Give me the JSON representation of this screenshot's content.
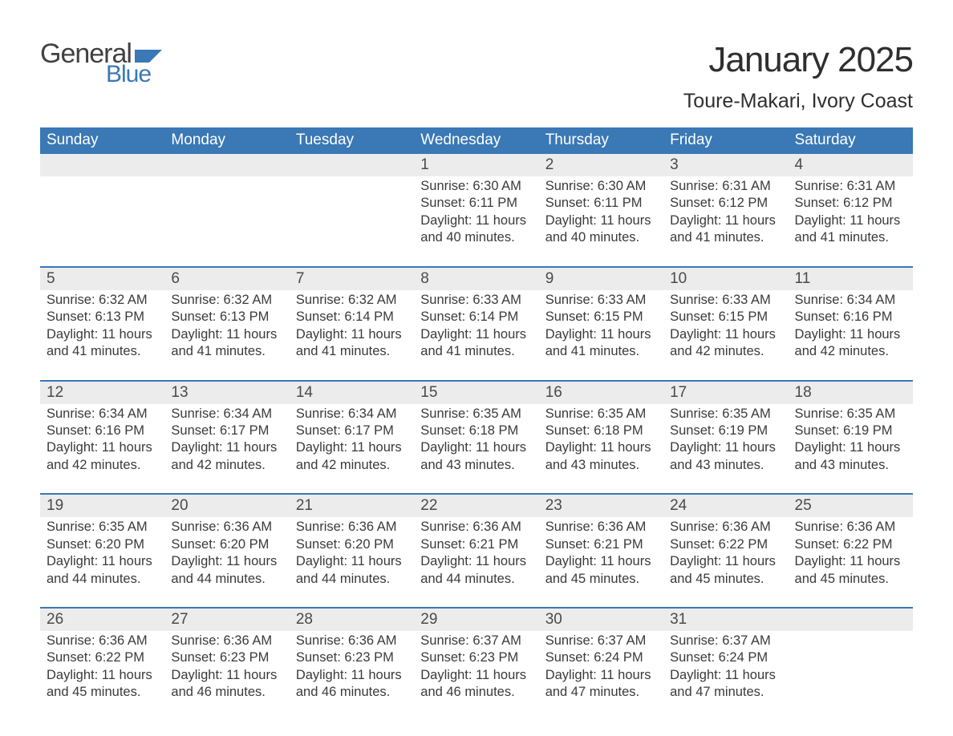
{
  "logo": {
    "general_text": "General",
    "blue_text": "Blue",
    "general_color": "#414141",
    "blue_color": "#3a78b6",
    "flag_color": "#3a78b6"
  },
  "header": {
    "month_title": "January 2025",
    "location": "Toure-Makari, Ivory Coast"
  },
  "style": {
    "header_row_bg": "#3a78b6",
    "header_row_text": "#ffffff",
    "daynum_bar_bg": "#ececec",
    "week_sep_color": "#3a78b6",
    "body_text_color": "#3a3a3a",
    "page_bg": "#ffffff"
  },
  "days_of_week": [
    "Sunday",
    "Monday",
    "Tuesday",
    "Wednesday",
    "Thursday",
    "Friday",
    "Saturday"
  ],
  "labels": {
    "sunrise": "Sunrise:",
    "sunset": "Sunset:",
    "daylight": "Daylight:"
  },
  "weeks": [
    [
      null,
      null,
      null,
      {
        "n": "1",
        "sr": "6:30 AM",
        "ss": "6:11 PM",
        "dl": "11 hours and 40 minutes."
      },
      {
        "n": "2",
        "sr": "6:30 AM",
        "ss": "6:11 PM",
        "dl": "11 hours and 40 minutes."
      },
      {
        "n": "3",
        "sr": "6:31 AM",
        "ss": "6:12 PM",
        "dl": "11 hours and 41 minutes."
      },
      {
        "n": "4",
        "sr": "6:31 AM",
        "ss": "6:12 PM",
        "dl": "11 hours and 41 minutes."
      }
    ],
    [
      {
        "n": "5",
        "sr": "6:32 AM",
        "ss": "6:13 PM",
        "dl": "11 hours and 41 minutes."
      },
      {
        "n": "6",
        "sr": "6:32 AM",
        "ss": "6:13 PM",
        "dl": "11 hours and 41 minutes."
      },
      {
        "n": "7",
        "sr": "6:32 AM",
        "ss": "6:14 PM",
        "dl": "11 hours and 41 minutes."
      },
      {
        "n": "8",
        "sr": "6:33 AM",
        "ss": "6:14 PM",
        "dl": "11 hours and 41 minutes."
      },
      {
        "n": "9",
        "sr": "6:33 AM",
        "ss": "6:15 PM",
        "dl": "11 hours and 41 minutes."
      },
      {
        "n": "10",
        "sr": "6:33 AM",
        "ss": "6:15 PM",
        "dl": "11 hours and 42 minutes."
      },
      {
        "n": "11",
        "sr": "6:34 AM",
        "ss": "6:16 PM",
        "dl": "11 hours and 42 minutes."
      }
    ],
    [
      {
        "n": "12",
        "sr": "6:34 AM",
        "ss": "6:16 PM",
        "dl": "11 hours and 42 minutes."
      },
      {
        "n": "13",
        "sr": "6:34 AM",
        "ss": "6:17 PM",
        "dl": "11 hours and 42 minutes."
      },
      {
        "n": "14",
        "sr": "6:34 AM",
        "ss": "6:17 PM",
        "dl": "11 hours and 42 minutes."
      },
      {
        "n": "15",
        "sr": "6:35 AM",
        "ss": "6:18 PM",
        "dl": "11 hours and 43 minutes."
      },
      {
        "n": "16",
        "sr": "6:35 AM",
        "ss": "6:18 PM",
        "dl": "11 hours and 43 minutes."
      },
      {
        "n": "17",
        "sr": "6:35 AM",
        "ss": "6:19 PM",
        "dl": "11 hours and 43 minutes."
      },
      {
        "n": "18",
        "sr": "6:35 AM",
        "ss": "6:19 PM",
        "dl": "11 hours and 43 minutes."
      }
    ],
    [
      {
        "n": "19",
        "sr": "6:35 AM",
        "ss": "6:20 PM",
        "dl": "11 hours and 44 minutes."
      },
      {
        "n": "20",
        "sr": "6:36 AM",
        "ss": "6:20 PM",
        "dl": "11 hours and 44 minutes."
      },
      {
        "n": "21",
        "sr": "6:36 AM",
        "ss": "6:20 PM",
        "dl": "11 hours and 44 minutes."
      },
      {
        "n": "22",
        "sr": "6:36 AM",
        "ss": "6:21 PM",
        "dl": "11 hours and 44 minutes."
      },
      {
        "n": "23",
        "sr": "6:36 AM",
        "ss": "6:21 PM",
        "dl": "11 hours and 45 minutes."
      },
      {
        "n": "24",
        "sr": "6:36 AM",
        "ss": "6:22 PM",
        "dl": "11 hours and 45 minutes."
      },
      {
        "n": "25",
        "sr": "6:36 AM",
        "ss": "6:22 PM",
        "dl": "11 hours and 45 minutes."
      }
    ],
    [
      {
        "n": "26",
        "sr": "6:36 AM",
        "ss": "6:22 PM",
        "dl": "11 hours and 45 minutes."
      },
      {
        "n": "27",
        "sr": "6:36 AM",
        "ss": "6:23 PM",
        "dl": "11 hours and 46 minutes."
      },
      {
        "n": "28",
        "sr": "6:36 AM",
        "ss": "6:23 PM",
        "dl": "11 hours and 46 minutes."
      },
      {
        "n": "29",
        "sr": "6:37 AM",
        "ss": "6:23 PM",
        "dl": "11 hours and 46 minutes."
      },
      {
        "n": "30",
        "sr": "6:37 AM",
        "ss": "6:24 PM",
        "dl": "11 hours and 47 minutes."
      },
      {
        "n": "31",
        "sr": "6:37 AM",
        "ss": "6:24 PM",
        "dl": "11 hours and 47 minutes."
      },
      null
    ]
  ]
}
